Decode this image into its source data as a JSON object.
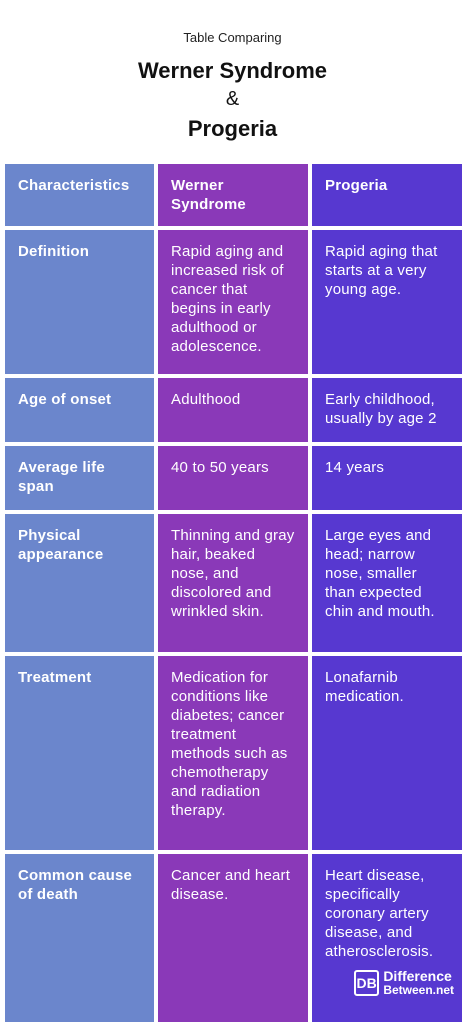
{
  "header": {
    "subtitle": "Table Comparing",
    "title_line1": "Werner Syndrome",
    "ampersand": "&",
    "title_line2": "Progeria"
  },
  "table": {
    "columns": [
      "Characteristics",
      "Werner Syndrome",
      "Progeria"
    ],
    "rows": [
      {
        "label": "Definition",
        "werner": "Rapid aging and increased risk of cancer that begins in early adulthood or adolescence.",
        "progeria": "Rapid aging that starts at a very young age."
      },
      {
        "label": "Age of onset",
        "werner": "Adulthood",
        "progeria": "Early childhood, usually by age 2"
      },
      {
        "label": "Average life span",
        "werner": "40 to 50 years",
        "progeria": "14 years"
      },
      {
        "label": "Physical appearance",
        "werner": "Thinning and gray hair, beaked nose, and discolored and wrinkled skin.",
        "progeria": "Large eyes and head; narrow nose, smaller than expected chin and mouth."
      },
      {
        "label": "Treatment",
        "werner": "Medication for conditions like diabetes; cancer treatment methods such as chemotherapy and radiation therapy.",
        "progeria": "Lonafarnib medication."
      },
      {
        "label": "Common cause of death",
        "werner": "Cancer and heart disease.",
        "progeria": "Heart disease, specifically coronary artery disease, and atherosclerosis."
      }
    ]
  },
  "logo": {
    "mark": "DB",
    "line1": "Difference",
    "line2": "Between.net"
  },
  "colors": {
    "characteristics_column": "#6b86cc",
    "werner_column": "#8a39b8",
    "progeria_column": "#5738d0"
  }
}
